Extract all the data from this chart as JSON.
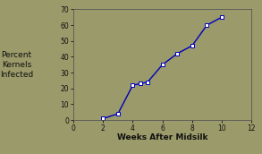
{
  "x": [
    2,
    3,
    4,
    4.5,
    5,
    6,
    7,
    8,
    9,
    10
  ],
  "y": [
    1,
    4,
    22,
    23,
    24,
    35,
    42,
    47,
    60,
    65
  ],
  "xlabel": "Weeks After Midsilk",
  "ylabel_lines": [
    "Percent",
    "Kernels",
    "Infected"
  ],
  "xlim": [
    0,
    12
  ],
  "ylim": [
    0,
    70
  ],
  "xticks": [
    0,
    2,
    4,
    6,
    8,
    10,
    12
  ],
  "yticks": [
    0,
    10,
    20,
    30,
    40,
    50,
    60,
    70
  ],
  "line_color": "#0000bb",
  "marker_color": "#ffffff",
  "marker_edge_color": "#0000bb",
  "background_color": "#9a9a6a",
  "plot_bg_color": "#9a9a6a",
  "spine_color": "#555555",
  "label_color": "#111111"
}
